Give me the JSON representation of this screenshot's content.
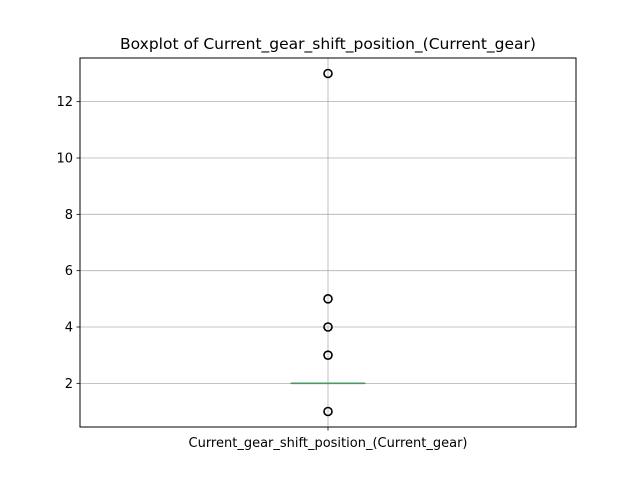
{
  "chart_data": {
    "type": "boxplot",
    "title": "Boxplot of Current_gear_shift_position_(Current_gear)",
    "xlabel": "",
    "ylabel": "",
    "categories": [
      "Current_gear_shift_position_(Current_gear)"
    ],
    "ylim": [
      0.45,
      13.55
    ],
    "yticks": [
      2,
      4,
      6,
      8,
      10,
      12
    ],
    "grid": true,
    "box": {
      "q1": 2,
      "median": 2,
      "q3": 2,
      "whisker_low": 2,
      "whisker_high": 2
    },
    "outliers": [
      1,
      3,
      4,
      5,
      13
    ],
    "colors": {
      "median": "#4a9a5c",
      "grid": "#b0b0b0",
      "box": "#3a75b0",
      "outlier_edge": "#000000"
    }
  }
}
